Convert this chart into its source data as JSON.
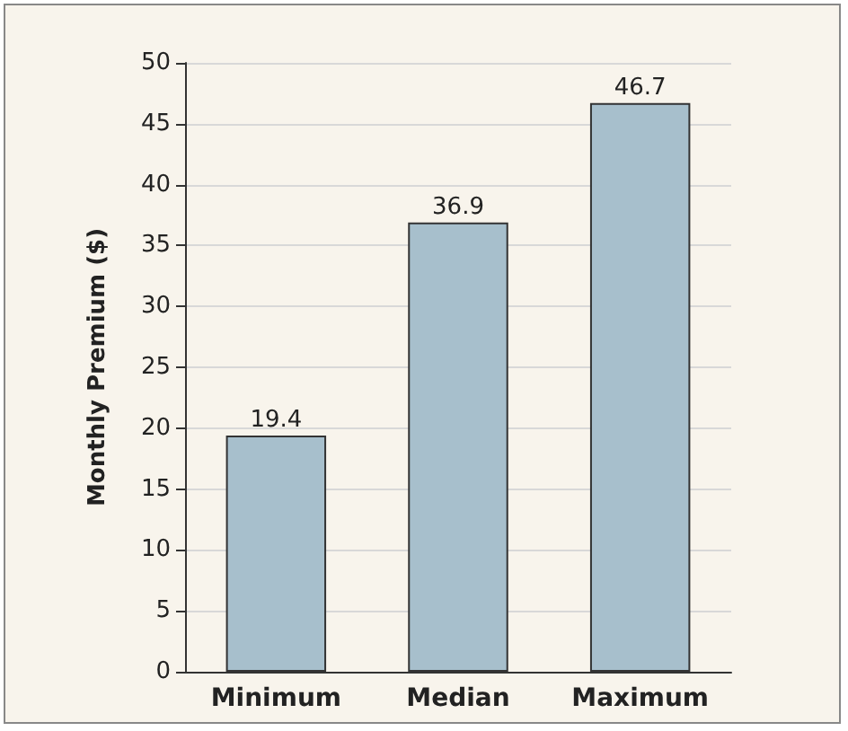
{
  "chart_data": {
    "type": "bar",
    "ylabel": "Monthly Premium ($)",
    "categories": [
      "Minimum",
      "Median",
      "Maximum"
    ],
    "values": [
      19.4,
      36.9,
      46.7
    ],
    "color": "#a7bfcc",
    "ylim": [
      0,
      50
    ],
    "yticks": [
      0,
      5,
      10,
      15,
      20,
      25,
      30,
      35,
      40,
      45,
      50
    ],
    "grid": "y",
    "data_labels": true
  }
}
